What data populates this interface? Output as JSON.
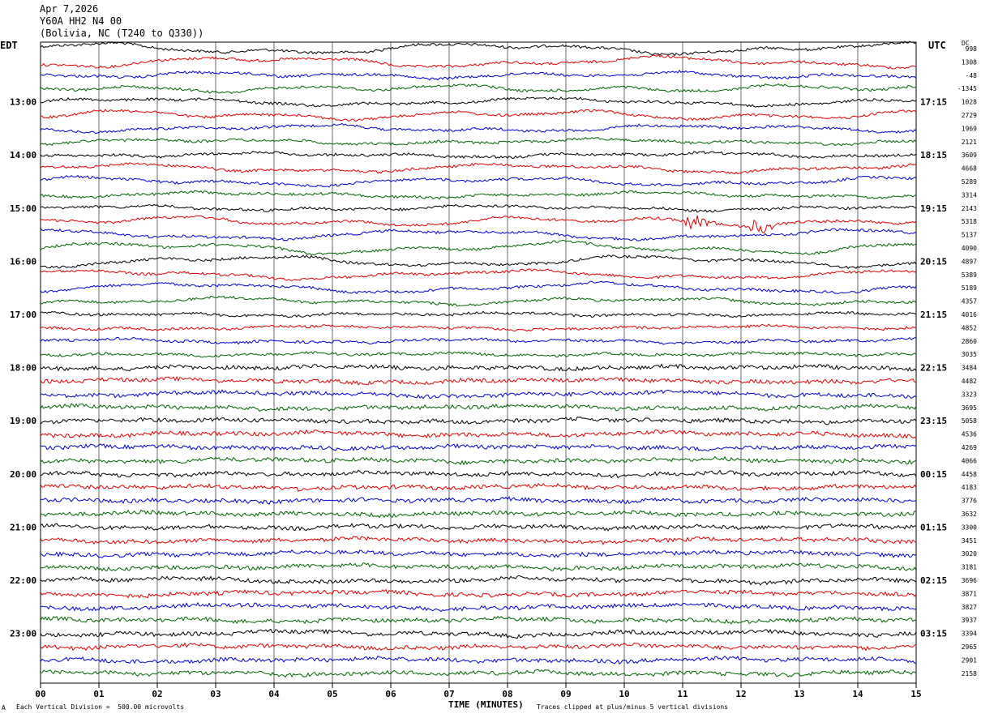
{
  "header": {
    "date": "Apr 7,2026",
    "station": "Y60A HH2 N4 00",
    "location": "(Bolivia, NC (T240 to Q330))"
  },
  "left_label": "EDT",
  "right_label": "UTC",
  "dc_label": "DC",
  "footer": {
    "scale": "Each Vertical Division =  500.00 microvolts",
    "xlabel": "TIME (MINUTES)",
    "clip_note": "Traces clipped at plus/minus 5 vertical divisions",
    "corner_mark": "A"
  },
  "colors": {
    "trace_cycle": [
      "#000000",
      "#e00000",
      "#0000d0",
      "#006400"
    ],
    "grid": "#000000"
  },
  "chart_data": {
    "type": "line",
    "title": "Y60A HH2 N4 00",
    "xlabel": "TIME (MINUTES)",
    "xlim": [
      0,
      15
    ],
    "x_ticks": [
      "00",
      "01",
      "02",
      "03",
      "04",
      "05",
      "06",
      "07",
      "08",
      "09",
      "10",
      "11",
      "12",
      "13",
      "14",
      "15"
    ],
    "row_minutes": 15,
    "left_time_labels": [
      {
        "row": 4,
        "label": "13:00"
      },
      {
        "row": 8,
        "label": "14:00"
      },
      {
        "row": 12,
        "label": "15:00"
      },
      {
        "row": 16,
        "label": "16:00"
      },
      {
        "row": 20,
        "label": "17:00"
      },
      {
        "row": 24,
        "label": "18:00"
      },
      {
        "row": 28,
        "label": "19:00"
      },
      {
        "row": 32,
        "label": "20:00"
      },
      {
        "row": 36,
        "label": "21:00"
      },
      {
        "row": 40,
        "label": "22:00"
      },
      {
        "row": 44,
        "label": "23:00"
      }
    ],
    "right_time_labels": [
      {
        "row": 4,
        "label": "17:15"
      },
      {
        "row": 8,
        "label": "18:15"
      },
      {
        "row": 12,
        "label": "19:15"
      },
      {
        "row": 16,
        "label": "20:15"
      },
      {
        "row": 20,
        "label": "21:15"
      },
      {
        "row": 24,
        "label": "22:15"
      },
      {
        "row": 28,
        "label": "23:15"
      },
      {
        "row": 32,
        "label": "00:15"
      },
      {
        "row": 36,
        "label": "01:15"
      },
      {
        "row": 40,
        "label": "02:15"
      },
      {
        "row": 44,
        "label": "03:15"
      }
    ],
    "dc_offsets": [
      "998",
      "1308",
      "-48",
      "-1345",
      "1028",
      "2729",
      "1969",
      "2121",
      "3609",
      "4668",
      "5289",
      "3314",
      "2143",
      "5318",
      "5137",
      "4090",
      "4897",
      "5389",
      "5189",
      "4357",
      "4016",
      "4852",
      "2860",
      "3035",
      "3484",
      "4482",
      "3323",
      "3695",
      "5058",
      "4536",
      "4269",
      "4066",
      "4458",
      "4183",
      "3776",
      "3632",
      "3300",
      "3451",
      "3020",
      "3181",
      "3696",
      "3871",
      "3827",
      "3937",
      "3394",
      "2965",
      "2901",
      "2158"
    ],
    "events": [
      {
        "row": 13,
        "minute": 11.2,
        "label": ""
      },
      {
        "row": 13,
        "minute": 12.3,
        "label": ""
      }
    ]
  }
}
